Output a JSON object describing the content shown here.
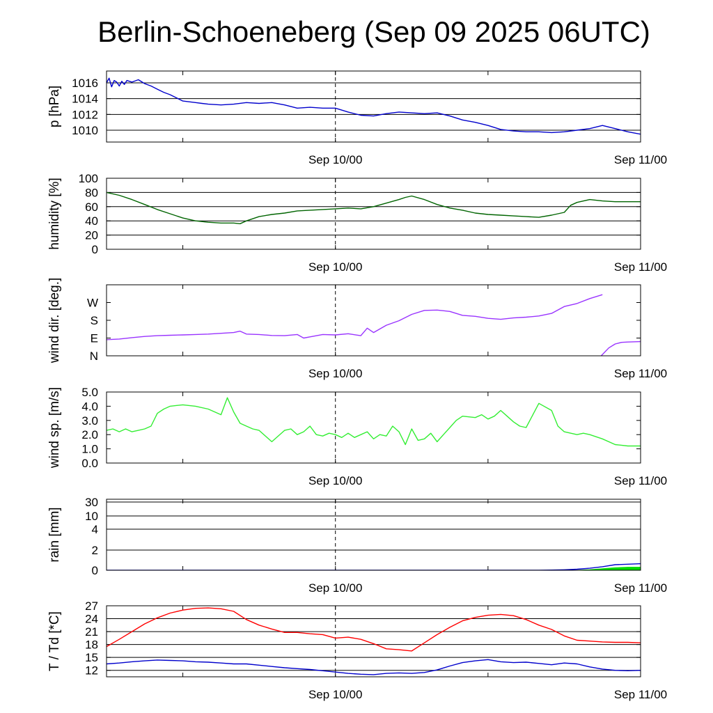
{
  "title": "Berlin-Schoeneberg (Sep 09 2025 06UTC)",
  "x_axis": {
    "start_hour": 0,
    "end_hour": 42,
    "labels": [
      {
        "hour": 18,
        "text": "Sep 10/00"
      },
      {
        "hour": 42,
        "text": "Sep 11/00"
      }
    ],
    "minor_ticks": [
      6,
      18,
      30,
      42
    ],
    "dashed_line_hour": 18
  },
  "colors": {
    "pressure": "#0000cc",
    "humidity": "#006400",
    "wind_dir": "#9933ff",
    "wind_speed": "#33ee33",
    "rain_blue": "#0000cc",
    "rain_green": "#00dd00",
    "temperature": "#ff0000",
    "dewpoint": "#0000cc"
  },
  "chart_data": [
    {
      "type": "line",
      "ylabel": "p [hPa]",
      "ylim": [
        1008.5,
        1017.5
      ],
      "yticks": [
        {
          "v": 1010,
          "label": "1010"
        },
        {
          "v": 1012,
          "label": "1012"
        },
        {
          "v": 1014,
          "label": "1014"
        },
        {
          "v": 1016,
          "label": "1016"
        }
      ],
      "grid": true,
      "series": [
        {
          "color_key": "pressure",
          "x": [
            0,
            0.2,
            0.4,
            0.6,
            0.8,
            1,
            1.2,
            1.4,
            1.6,
            2,
            2.5,
            3,
            3.5,
            4,
            4.5,
            5,
            5.5,
            6,
            6.5,
            7,
            7.5,
            8,
            9,
            10,
            11,
            12,
            13,
            14,
            15,
            16,
            17,
            18,
            19,
            20,
            21,
            22,
            23,
            24,
            25,
            26,
            27,
            28,
            29,
            30,
            31,
            32,
            33,
            34,
            35,
            36,
            37,
            38,
            39,
            40,
            41,
            42
          ],
          "y": [
            1016,
            1016.6,
            1015.5,
            1016.3,
            1016.1,
            1015.6,
            1016.2,
            1015.8,
            1016.3,
            1016.1,
            1016.4,
            1015.9,
            1015.6,
            1015.2,
            1014.8,
            1014.5,
            1014.1,
            1013.7,
            1013.6,
            1013.5,
            1013.4,
            1013.3,
            1013.2,
            1013.3,
            1013.5,
            1013.4,
            1013.5,
            1013.2,
            1012.8,
            1012.9,
            1012.8,
            1012.8,
            1012.3,
            1011.9,
            1011.8,
            1012.1,
            1012.3,
            1012.2,
            1012.1,
            1012.2,
            1011.8,
            1011.3,
            1011.0,
            1010.6,
            1010.1,
            1009.9,
            1009.8,
            1009.8,
            1009.7,
            1009.8,
            1010.0,
            1010.2,
            1010.6,
            1010.2,
            1009.8,
            1009.5
          ]
        }
      ]
    },
    {
      "type": "line",
      "ylabel": "humidity [%]",
      "ylim": [
        0,
        100
      ],
      "yticks": [
        {
          "v": 0,
          "label": "0"
        },
        {
          "v": 20,
          "label": "20"
        },
        {
          "v": 40,
          "label": "40"
        },
        {
          "v": 60,
          "label": "60"
        },
        {
          "v": 80,
          "label": "80"
        },
        {
          "v": 100,
          "label": "100"
        }
      ],
      "grid": true,
      "series": [
        {
          "color_key": "humidity",
          "x": [
            0,
            1,
            2,
            3,
            4,
            5,
            6,
            7,
            8,
            9,
            10,
            10.5,
            11,
            12,
            13,
            14,
            15,
            16,
            17,
            18,
            19,
            20,
            21,
            22,
            23,
            23.5,
            24,
            25,
            26,
            27,
            28,
            29,
            30,
            31,
            32,
            33,
            34,
            35,
            36,
            36.5,
            37,
            38,
            39,
            40,
            41,
            42
          ],
          "y": [
            80,
            76,
            70,
            63,
            56,
            50,
            44,
            40,
            38,
            37,
            37,
            36,
            40,
            46,
            49,
            51,
            54,
            55,
            56,
            57,
            58,
            57,
            60,
            65,
            70,
            73,
            75,
            70,
            63,
            58,
            55,
            51,
            49,
            48,
            47,
            46,
            45,
            48,
            52,
            62,
            66,
            70,
            68,
            67,
            67,
            67
          ]
        }
      ]
    },
    {
      "type": "line",
      "ylabel": "wind dir. [deg.]",
      "ylim": [
        0,
        360
      ],
      "yticks": [
        {
          "v": 0,
          "label": "N"
        },
        {
          "v": 90,
          "label": "E"
        },
        {
          "v": 180,
          "label": "S"
        },
        {
          "v": 270,
          "label": "W"
        }
      ],
      "grid": false,
      "series": [
        {
          "color_key": "wind_dir",
          "x": [
            0,
            1,
            2,
            3,
            4,
            5,
            6,
            7,
            8,
            9,
            10,
            10.5,
            11,
            12,
            13,
            14,
            15,
            15.5,
            16,
            17,
            18,
            19,
            20,
            20.5,
            21,
            22,
            23,
            24,
            25,
            26,
            27,
            28,
            29,
            30,
            31,
            32,
            33,
            34,
            35,
            36,
            37,
            38,
            39
          ],
          "y": [
            82,
            85,
            92,
            98,
            102,
            104,
            106,
            108,
            110,
            114,
            118,
            125,
            110,
            108,
            103,
            102,
            108,
            90,
            96,
            108,
            106,
            112,
            102,
            140,
            118,
            155,
            178,
            210,
            230,
            232,
            225,
            205,
            200,
            190,
            185,
            192,
            196,
            202,
            215,
            250,
            265,
            290,
            310
          ]
        },
        {
          "color_key": "wind_dir",
          "x": [
            38.9,
            39.5,
            40,
            40.5,
            41,
            42
          ],
          "y": [
            0,
            40,
            60,
            68,
            70,
            72
          ]
        }
      ]
    },
    {
      "type": "line",
      "ylabel": "wind sp. [m/s]",
      "ylim": [
        0,
        5
      ],
      "yticks": [
        {
          "v": 0,
          "label": "0.0"
        },
        {
          "v": 1,
          "label": "1.0"
        },
        {
          "v": 2,
          "label": "2.0"
        },
        {
          "v": 3,
          "label": "3.0"
        },
        {
          "v": 4,
          "label": "4.0"
        },
        {
          "v": 5,
          "label": "5.0"
        }
      ],
      "grid": false,
      "series": [
        {
          "color_key": "wind_speed",
          "x": [
            0,
            0.5,
            1,
            1.5,
            2,
            2.5,
            3,
            3.5,
            4,
            4.5,
            5,
            6,
            7,
            8,
            9,
            9.5,
            10,
            10.5,
            11,
            11.5,
            12,
            13,
            14,
            14.5,
            15,
            15.5,
            16,
            16.5,
            17,
            17.5,
            18,
            18.5,
            19,
            19.5,
            20,
            20.5,
            21,
            21.5,
            22,
            22.5,
            23,
            23.5,
            24,
            24.5,
            25,
            25.5,
            26,
            26.5,
            27,
            27.5,
            28,
            29,
            29.5,
            30,
            30.5,
            31,
            31.5,
            32,
            32.5,
            33,
            34,
            35,
            35.5,
            36,
            37,
            37.5,
            38,
            39,
            40,
            41,
            41.5,
            42
          ],
          "y": [
            2.3,
            2.4,
            2.2,
            2.4,
            2.2,
            2.3,
            2.4,
            2.6,
            3.5,
            3.8,
            4.0,
            4.1,
            4.0,
            3.8,
            3.4,
            4.6,
            3.6,
            2.8,
            2.6,
            2.4,
            2.3,
            1.5,
            2.3,
            2.4,
            2.0,
            2.2,
            2.6,
            2.0,
            1.9,
            2.1,
            2.0,
            1.8,
            2.1,
            1.8,
            2.0,
            2.2,
            1.7,
            2.0,
            1.9,
            2.6,
            2.2,
            1.3,
            2.4,
            1.6,
            1.7,
            2.1,
            1.5,
            2.0,
            2.5,
            3.0,
            3.3,
            3.2,
            3.4,
            3.1,
            3.3,
            3.7,
            3.3,
            2.9,
            2.6,
            2.5,
            4.2,
            3.7,
            2.6,
            2.2,
            2.0,
            2.1,
            2.0,
            1.7,
            1.3,
            1.2,
            1.2,
            1.2
          ]
        }
      ]
    },
    {
      "type": "area",
      "ylabel": "rain [mm]",
      "scale": "nonlinear",
      "yticks": [
        {
          "v": 0,
          "label": "0"
        },
        {
          "v": 2,
          "label": "2"
        },
        {
          "v": 4,
          "label": "4"
        },
        {
          "v": 10,
          "label": "10"
        },
        {
          "v": 30,
          "label": "30"
        }
      ],
      "grid": true,
      "series": [
        {
          "color_key": "rain_green",
          "kind": "area",
          "x": [
            0,
            35,
            36,
            37,
            38,
            39,
            40,
            41,
            42
          ],
          "y": [
            0,
            0,
            0,
            0,
            0.05,
            0.15,
            0.25,
            0.3,
            0.3
          ]
        },
        {
          "color_key": "rain_blue",
          "kind": "line",
          "x": [
            0,
            34,
            35,
            36,
            37,
            38,
            39,
            40,
            41,
            42
          ],
          "y": [
            0,
            0,
            0.02,
            0.05,
            0.1,
            0.2,
            0.35,
            0.55,
            0.6,
            0.65
          ]
        }
      ]
    },
    {
      "type": "line",
      "ylabel": "T / Td [*C]",
      "ylim": [
        10.5,
        27
      ],
      "yticks": [
        {
          "v": 12,
          "label": "12"
        },
        {
          "v": 15,
          "label": "15"
        },
        {
          "v": 18,
          "label": "18"
        },
        {
          "v": 21,
          "label": "21"
        },
        {
          "v": 24,
          "label": "24"
        },
        {
          "v": 27,
          "label": "27"
        }
      ],
      "grid": true,
      "series": [
        {
          "color_key": "temperature",
          "x": [
            0,
            1,
            2,
            3,
            4,
            5,
            6,
            7,
            8,
            9,
            10,
            11,
            12,
            13,
            14,
            15,
            16,
            17,
            18,
            19,
            20,
            21,
            22,
            23,
            24,
            25,
            26,
            27,
            28,
            29,
            30,
            31,
            32,
            33,
            34,
            35,
            36,
            37,
            38,
            39,
            40,
            41,
            42
          ],
          "y": [
            17.5,
            19.2,
            21,
            22.8,
            24.2,
            25.3,
            26,
            26.4,
            26.5,
            26.3,
            25.7,
            23.8,
            22.5,
            21.6,
            20.8,
            20.8,
            20.5,
            20.3,
            19.5,
            19.7,
            19.2,
            18.2,
            17,
            16.8,
            16.5,
            18.4,
            20.3,
            22,
            23.5,
            24.3,
            24.8,
            25,
            24.7,
            23.8,
            22.5,
            21.5,
            20,
            19,
            18.8,
            18.6,
            18.5,
            18.5,
            18.4
          ]
        },
        {
          "color_key": "dewpoint",
          "x": [
            0,
            1,
            2,
            3,
            4,
            5,
            6,
            7,
            8,
            9,
            10,
            11,
            12,
            13,
            14,
            15,
            16,
            17,
            18,
            19,
            20,
            21,
            22,
            23,
            24,
            25,
            26,
            27,
            28,
            29,
            30,
            31,
            32,
            33,
            34,
            35,
            36,
            37,
            38,
            39,
            40,
            41,
            42
          ],
          "y": [
            13.5,
            13.7,
            14,
            14.2,
            14.4,
            14.3,
            14.2,
            14,
            13.9,
            13.7,
            13.5,
            13.5,
            13.2,
            12.9,
            12.6,
            12.4,
            12.2,
            11.9,
            11.6,
            11.3,
            11.1,
            11,
            11.3,
            11.4,
            11.3,
            11.5,
            12.1,
            13,
            13.8,
            14.2,
            14.5,
            14,
            13.8,
            13.9,
            13.6,
            13.3,
            13.7,
            13.5,
            12.8,
            12.3,
            12,
            11.9,
            12
          ]
        }
      ]
    }
  ]
}
